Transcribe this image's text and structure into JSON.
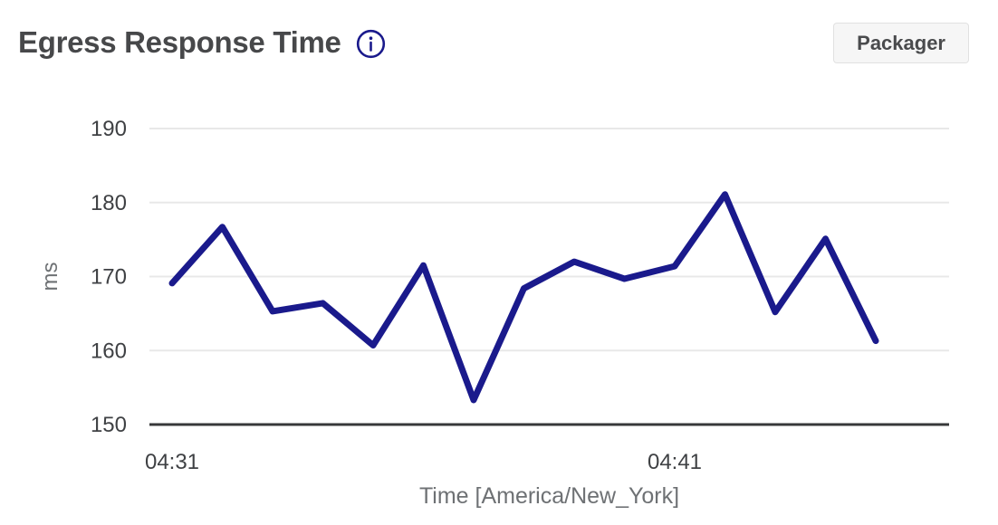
{
  "header": {
    "title": "Egress Response Time",
    "button_label": "Packager"
  },
  "colors": {
    "accent_line": "#1a1a8c",
    "grid_line": "#e8e8e8",
    "axis_line": "#37383a",
    "tick_label": "#3f4144",
    "axis_title": "#6e7174",
    "heading": "#47484a",
    "button_bg": "#f6f6f6",
    "button_border": "#e1e1e1",
    "button_text": "#4a4b4d"
  },
  "chart_data": {
    "type": "line",
    "title": "Egress Response Time",
    "xlabel": "Time [America/New_York]",
    "ylabel": "ms",
    "ylim": [
      150,
      190
    ],
    "yticks": [
      150,
      160,
      170,
      180,
      190
    ],
    "x": [
      "04:31",
      "04:32",
      "04:33",
      "04:34",
      "04:35",
      "04:36",
      "04:37",
      "04:38",
      "04:39",
      "04:40",
      "04:41",
      "04:42",
      "04:43",
      "04:44",
      "04:45"
    ],
    "xticks_shown": [
      "04:31",
      "04:41"
    ],
    "grid": "horizontal-only",
    "legend": "none",
    "series": [
      {
        "name": "Packager",
        "values": [
          169.1,
          176.7,
          165.3,
          166.4,
          160.7,
          171.5,
          153.3,
          168.4,
          172.0,
          169.7,
          171.4,
          181.1,
          165.2,
          175.1,
          161.3
        ]
      }
    ]
  }
}
